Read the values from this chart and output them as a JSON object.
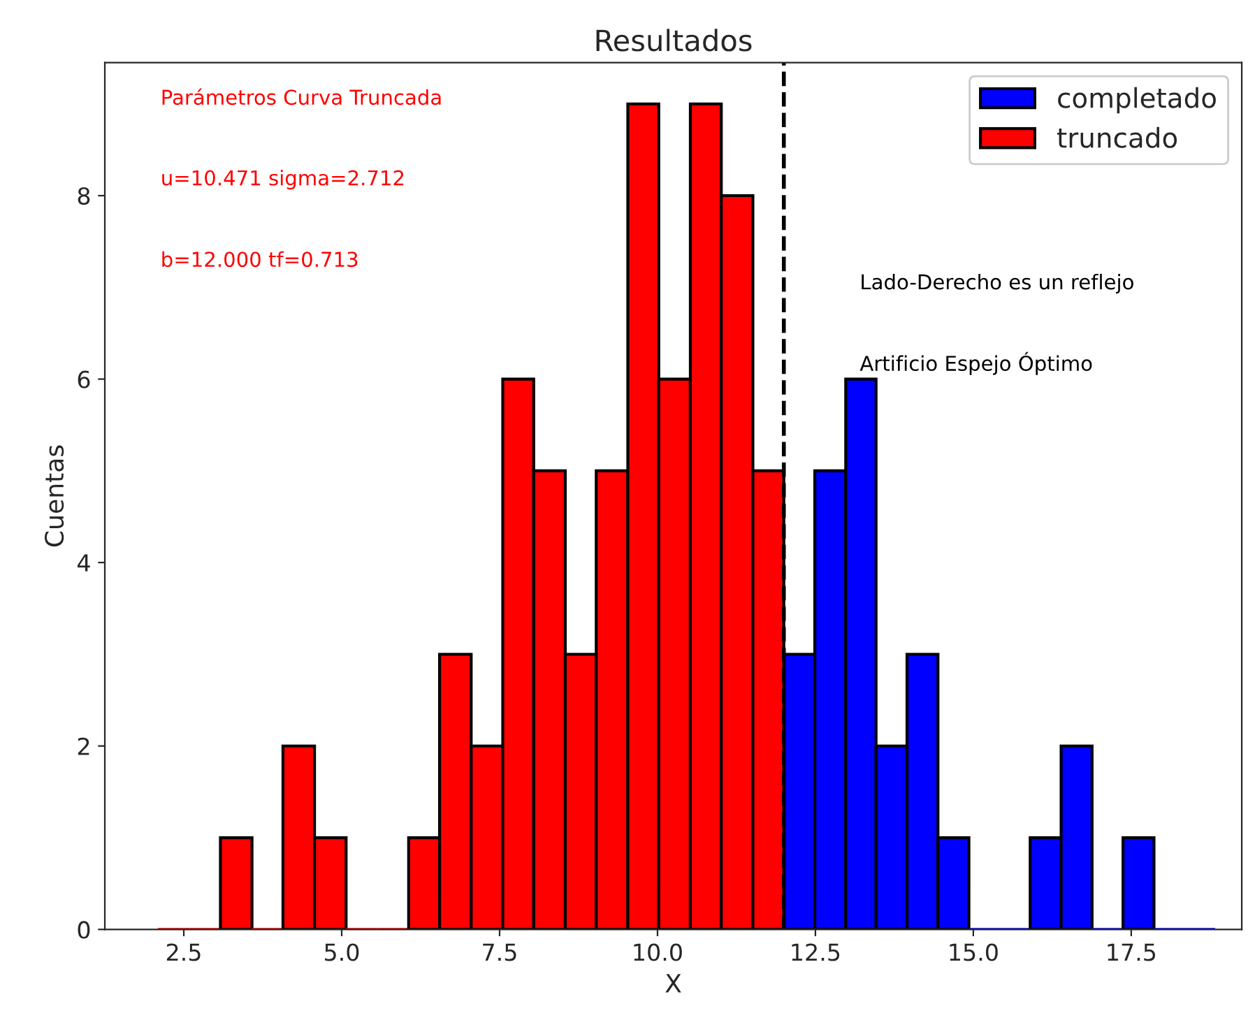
{
  "chart_data": {
    "type": "histogram",
    "title": "Resultados",
    "xlabel": "X",
    "ylabel": "Cuentas",
    "bins": [
      2.09,
      2.59,
      3.08,
      3.58,
      4.07,
      4.57,
      5.07,
      5.56,
      6.06,
      6.55,
      7.05,
      7.55,
      8.04,
      8.54,
      9.03,
      9.53,
      10.02,
      10.52,
      11.01,
      11.51,
      12.0,
      12.49,
      12.98,
      13.46,
      13.95,
      14.44,
      14.93,
      15.42,
      15.9,
      16.39,
      16.88,
      17.37,
      17.86,
      18.34,
      18.83
    ],
    "series": [
      {
        "name": "completado",
        "color": "#0000ff",
        "values": [
          null,
          null,
          null,
          null,
          null,
          null,
          null,
          null,
          null,
          null,
          null,
          null,
          null,
          null,
          null,
          null,
          null,
          null,
          null,
          null,
          3,
          5,
          6,
          2,
          3,
          1,
          0,
          0,
          1,
          2,
          0,
          1,
          0,
          0
        ]
      },
      {
        "name": "truncado",
        "color": "#ff0000",
        "values": [
          0,
          0,
          1,
          0,
          2,
          1,
          0,
          0,
          1,
          3,
          2,
          6,
          5,
          3,
          5,
          9,
          6,
          9,
          8,
          5,
          null,
          null,
          null,
          null,
          null,
          null,
          null,
          null,
          null,
          null,
          null,
          null,
          null,
          null
        ]
      }
    ],
    "xlim": [
      1.25,
      19.25
    ],
    "ylim": [
      0,
      9.45
    ],
    "xticks": [
      {
        "value": 2.5,
        "label": "2.5"
      },
      {
        "value": 5.0,
        "label": "5.0"
      },
      {
        "value": 7.5,
        "label": "7.5"
      },
      {
        "value": 10.0,
        "label": "10.0"
      },
      {
        "value": 12.5,
        "label": "12.5"
      },
      {
        "value": 15.0,
        "label": "15.0"
      },
      {
        "value": 17.5,
        "label": "17.5"
      }
    ],
    "yticks": [
      0,
      2,
      4,
      6,
      8
    ],
    "ref_lines": [
      {
        "axis": "x",
        "value": 12.0,
        "label": null,
        "color": "#000000",
        "line_style": "dashed"
      }
    ],
    "annotations": [
      "Parámetros Curva Truncada",
      "u=10.471 sigma=2.712",
      "b=12.000 tf=0.713",
      "Lado-Derecho es un reflejo",
      "Artificio Espejo Óptimo"
    ],
    "legend": "top right",
    "grid": false
  }
}
